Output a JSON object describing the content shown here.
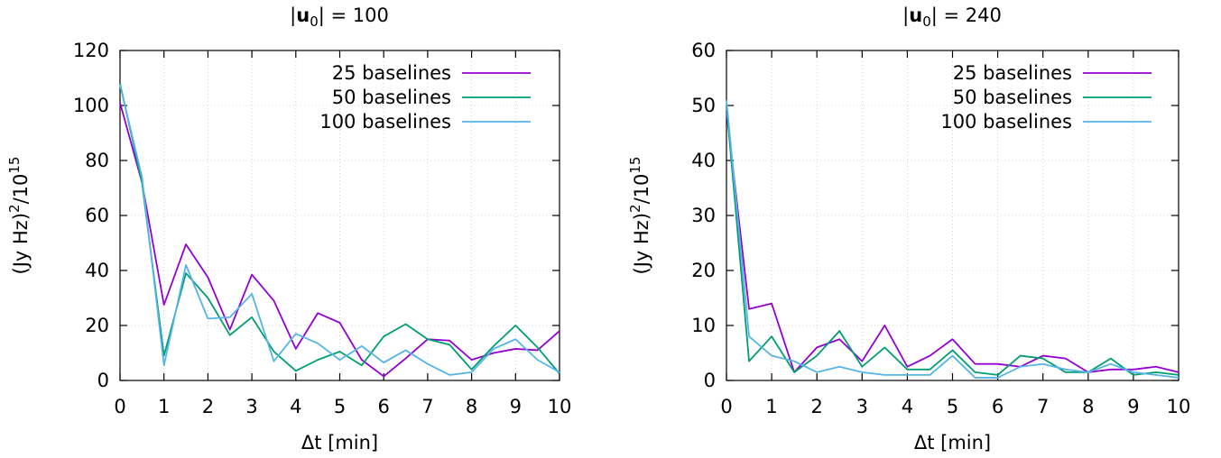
{
  "chart_data": [
    {
      "type": "line",
      "title": {
        "prefix": "|",
        "bold": "u",
        "sub": "0",
        "suffix": "| = 100"
      },
      "xlabel": "Δt [min]",
      "ylabel": {
        "base": "(Jy Hz)",
        "sup1": "2",
        "mid": "/10",
        "sup2": "15"
      },
      "xlim": [
        0,
        10
      ],
      "ylim": [
        0,
        120
      ],
      "xticks": [
        0,
        1,
        2,
        3,
        4,
        5,
        6,
        7,
        8,
        9,
        10
      ],
      "yticks": [
        0,
        20,
        40,
        60,
        80,
        100,
        120
      ],
      "grid": true,
      "legend": "top-right",
      "x": [
        0,
        0.5,
        1,
        1.5,
        2,
        2.5,
        3,
        3.5,
        4,
        4.5,
        5,
        5.5,
        6,
        6.5,
        7,
        7.5,
        8,
        8.5,
        9,
        9.5,
        10
      ],
      "series": [
        {
          "name": "25 baselines",
          "color": "#9400d3",
          "values": [
            101,
            72,
            27.5,
            49.5,
            37.5,
            18.5,
            38.5,
            29,
            11.5,
            24.5,
            21,
            7.5,
            1.5,
            8,
            15,
            14.5,
            7.5,
            10,
            11.5,
            11,
            18
          ]
        },
        {
          "name": "50 baselines",
          "color": "#009e73",
          "values": [
            108,
            72,
            9,
            39,
            30,
            16.5,
            23,
            10.5,
            3.5,
            7.5,
            10.5,
            5.5,
            16,
            20.5,
            15,
            13,
            4,
            12.5,
            20,
            12,
            2.5
          ]
        },
        {
          "name": "100 baselines",
          "color": "#56b4e9",
          "values": [
            107.5,
            74,
            5.5,
            42,
            22.5,
            23,
            31.5,
            7,
            17,
            13.5,
            7.5,
            12.5,
            6.5,
            11,
            6,
            2,
            3,
            11.5,
            15,
            7.5,
            3
          ]
        }
      ]
    },
    {
      "type": "line",
      "title": {
        "prefix": "|",
        "bold": "u",
        "sub": "0",
        "suffix": "| = 240"
      },
      "xlabel": "Δt [min]",
      "ylabel": {
        "base": "(Jy Hz)",
        "sup1": "2",
        "mid": "/10",
        "sup2": "15"
      },
      "xlim": [
        0,
        10
      ],
      "ylim": [
        0,
        60
      ],
      "xticks": [
        0,
        1,
        2,
        3,
        4,
        5,
        6,
        7,
        8,
        9,
        10
      ],
      "yticks": [
        0,
        10,
        20,
        30,
        40,
        50,
        60
      ],
      "grid": true,
      "legend": "top-right",
      "x": [
        0,
        0.5,
        1,
        1.5,
        2,
        2.5,
        3,
        3.5,
        4,
        4.5,
        5,
        5.5,
        6,
        6.5,
        7,
        7.5,
        8,
        8.5,
        9,
        9.5,
        10
      ],
      "series": [
        {
          "name": "25 baselines",
          "color": "#9400d3",
          "values": [
            49,
            13,
            14,
            1.5,
            6,
            7.5,
            3.5,
            10,
            2.5,
            4.5,
            7.5,
            3,
            3,
            2.5,
            4.5,
            4,
            1.5,
            2,
            2,
            2.5,
            1.5
          ]
        },
        {
          "name": "50 baselines",
          "color": "#009e73",
          "values": [
            50,
            3.5,
            8,
            1.5,
            4.5,
            9,
            2.5,
            6,
            2,
            2,
            5.5,
            1.5,
            1,
            4.5,
            4,
            1.5,
            1.5,
            4,
            1,
            1.5,
            1
          ]
        },
        {
          "name": "100 baselines",
          "color": "#56b4e9",
          "values": [
            51,
            8,
            4.5,
            3.5,
            1.5,
            2.5,
            1.5,
            1,
            1,
            1,
            4.5,
            0.5,
            0.5,
            2.5,
            3,
            2,
            1.5,
            3,
            1.5,
            1,
            0.5
          ]
        }
      ]
    }
  ]
}
